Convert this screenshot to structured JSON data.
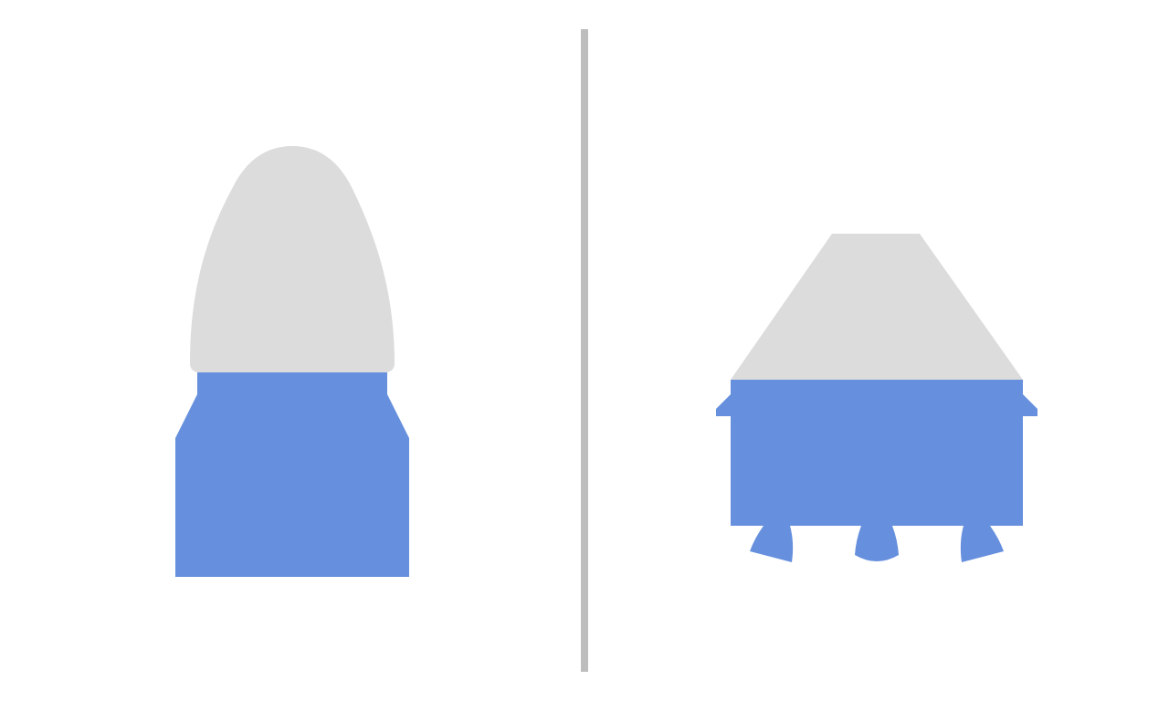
{
  "colors": {
    "background": "#ffffff",
    "cap": "#dcdcdc",
    "body": "#668fdd",
    "divider": "#bdbdbd"
  },
  "panels": [
    {
      "id": "left",
      "shape": "rocket-nosecone-capsule",
      "parts": [
        "cap-dome-icon",
        "body-block-icon"
      ]
    },
    {
      "id": "right",
      "shape": "lander-capsule",
      "parts": [
        "cap-trapezoid-icon",
        "body-block-icon",
        "side-fin-icon",
        "thruster-nozzle-icon"
      ]
    }
  ]
}
